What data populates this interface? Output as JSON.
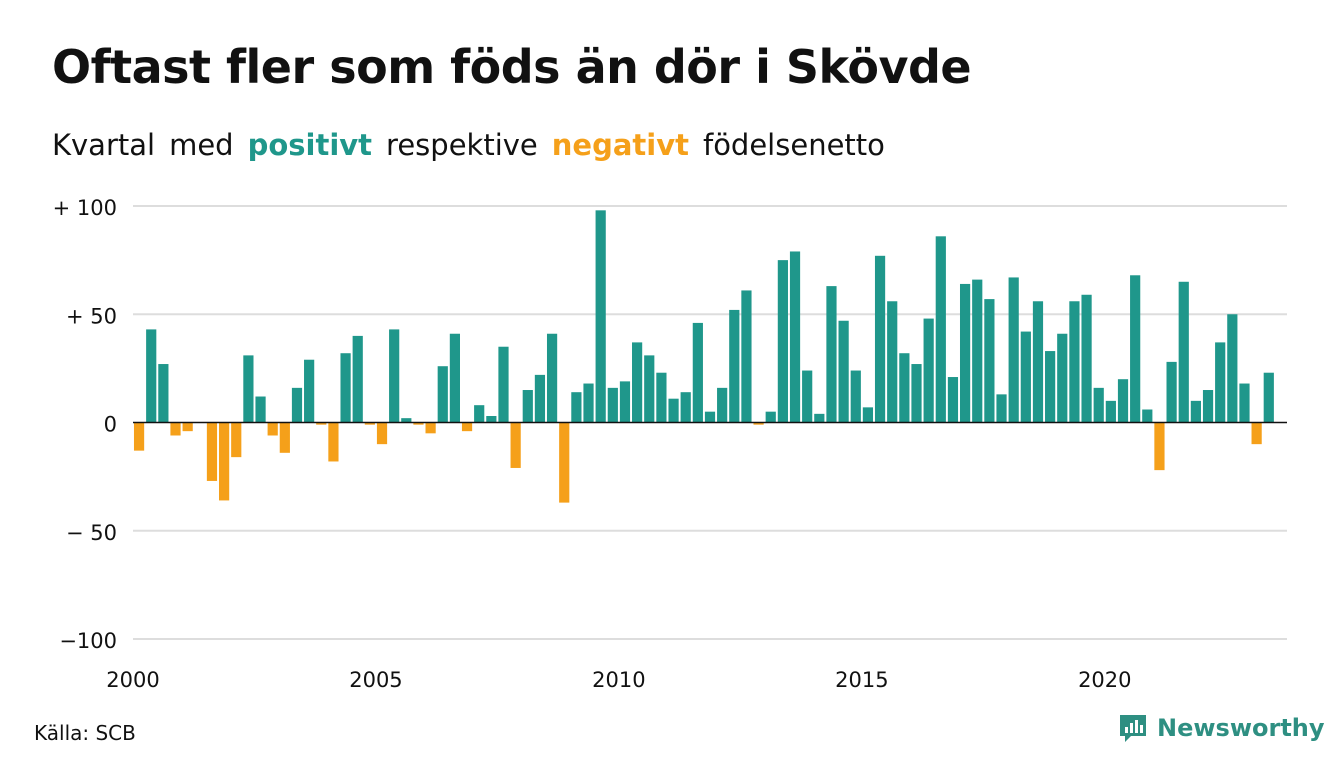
{
  "title": "Oftast fler som föds än dör i Skövde",
  "subtitle": {
    "w1": "Kvartal",
    "w2": "med",
    "positive": "positivt",
    "w3": "respektive",
    "negative": "negativt",
    "w4": "födelsenetto"
  },
  "source": "Källa: SCB",
  "brand": "Newsworthy",
  "colors": {
    "positive": "#1f978b",
    "negative": "#f5a01a",
    "grid": "#dddddd",
    "zero": "#111111",
    "brand": "#2e8f82"
  },
  "chart_data": {
    "type": "bar",
    "x_start": 2000.0,
    "x_step": 0.25,
    "xlim": [
      2000,
      2023.75
    ],
    "ylim": [
      -100,
      100
    ],
    "x_ticks": [
      2000,
      2005,
      2010,
      2015,
      2020
    ],
    "x_tick_labels": [
      "2000",
      "2005",
      "2010",
      "2015",
      "2020"
    ],
    "y_ticks": [
      100,
      50,
      0,
      -50,
      -100
    ],
    "y_tick_labels": [
      "+ 100",
      "+  50",
      "0",
      "− 50",
      "−100"
    ],
    "legend": "in subtitle",
    "values": [
      -13,
      43,
      27,
      -6,
      -4,
      0,
      -27,
      -36,
      -16,
      31,
      12,
      -6,
      -14,
      16,
      29,
      -1,
      -18,
      32,
      40,
      -1,
      -10,
      43,
      2,
      -1,
      -5,
      26,
      41,
      -4,
      8,
      3,
      35,
      -21,
      15,
      22,
      41,
      -37,
      14,
      18,
      98,
      16,
      19,
      37,
      31,
      23,
      11,
      14,
      46,
      5,
      16,
      52,
      61,
      -1,
      5,
      75,
      79,
      24,
      4,
      63,
      47,
      24,
      7,
      77,
      56,
      32,
      27,
      48,
      86,
      21,
      64,
      66,
      57,
      13,
      67,
      42,
      56,
      33,
      41,
      56,
      59,
      16,
      10,
      20,
      68,
      6,
      -22,
      28,
      65,
      10,
      15,
      37,
      50,
      18,
      -10,
      23
    ]
  }
}
